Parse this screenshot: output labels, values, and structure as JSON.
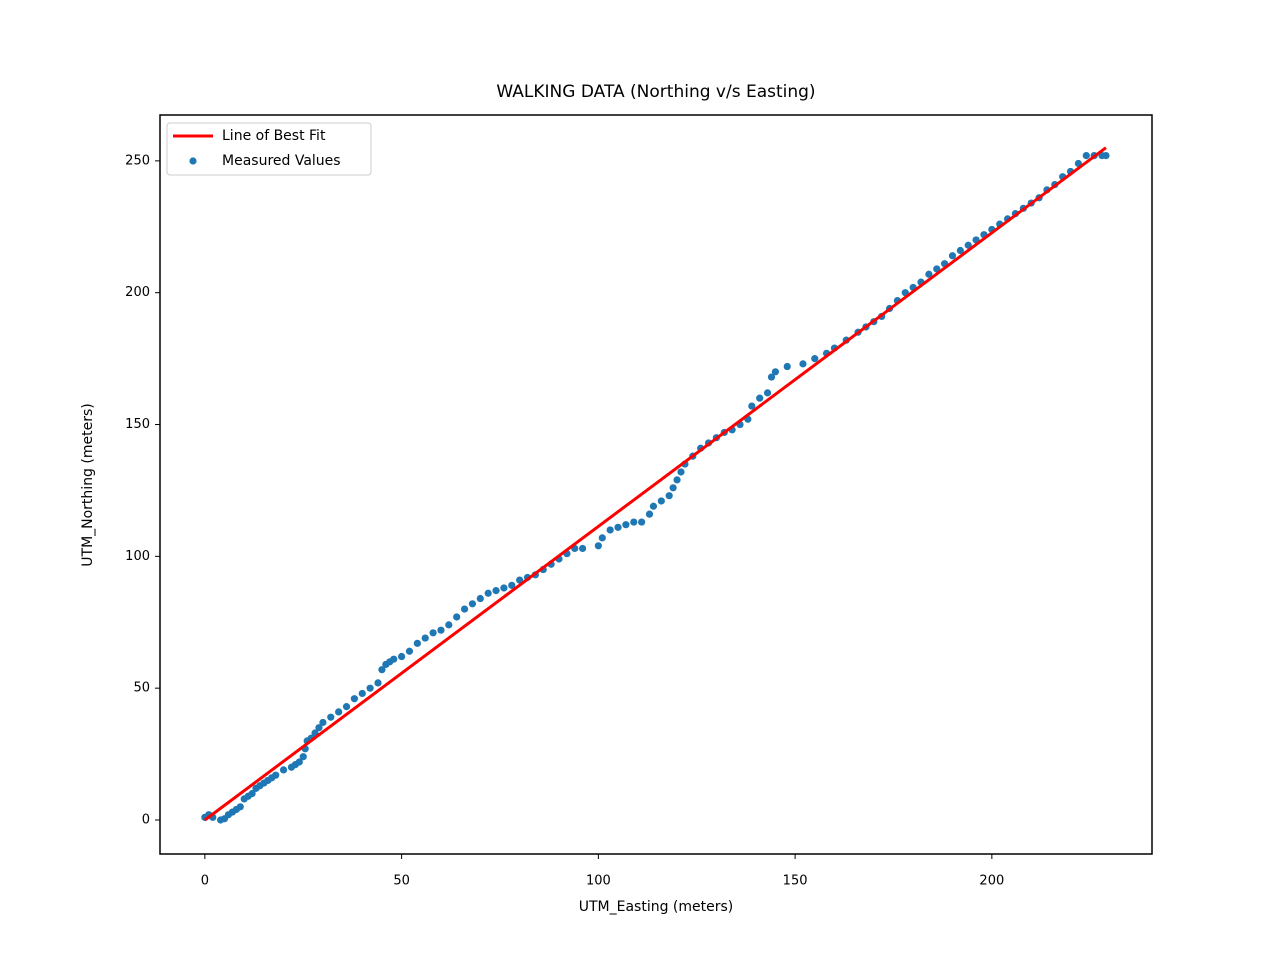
{
  "chart_data": {
    "type": "scatter",
    "title": "WALKING DATA (Northing v/s Easting)",
    "xlabel": "UTM_Easting (meters)",
    "ylabel": "UTM_Northing (meters)",
    "xlim": [
      -11.4,
      240.7
    ],
    "ylim": [
      -12.9,
      267.4
    ],
    "xticks": [
      0,
      50,
      100,
      150,
      200
    ],
    "yticks": [
      0,
      50,
      100,
      150,
      200,
      250
    ],
    "grid": false,
    "legend": "upper left",
    "series": [
      {
        "name": "Line of Best Fit",
        "type": "line",
        "color": "#ff0000",
        "x": [
          0,
          229
        ],
        "values": [
          0,
          255
        ]
      },
      {
        "name": "Measured Values",
        "type": "scatter",
        "color": "#1f77b4",
        "x": [
          0,
          1,
          2,
          4,
          5,
          6,
          7,
          8,
          9,
          10,
          11,
          12,
          13,
          14,
          15,
          16,
          17,
          18,
          20,
          22,
          23,
          24,
          25,
          25.5,
          26,
          27,
          28,
          29,
          30,
          32,
          34,
          36,
          38,
          40,
          42,
          44,
          45,
          46,
          47,
          48,
          50,
          52,
          54,
          56,
          58,
          60,
          62,
          64,
          66,
          68,
          70,
          72,
          74,
          76,
          78,
          80,
          82,
          84,
          86,
          88,
          90,
          92,
          94,
          96,
          100,
          101,
          103,
          105,
          107,
          109,
          111,
          113,
          114,
          116,
          118,
          119,
          120,
          121,
          122,
          124,
          126,
          128,
          130,
          132,
          134,
          136,
          138,
          139,
          141,
          143,
          144,
          145,
          148,
          152,
          155,
          158,
          160,
          163,
          166,
          168,
          170,
          172,
          174,
          176,
          178,
          180,
          182,
          184,
          186,
          188,
          190,
          192,
          194,
          196,
          198,
          200,
          202,
          204,
          206,
          208,
          210,
          212,
          214,
          216,
          218,
          220,
          222,
          224,
          226,
          228,
          229
        ],
        "values": [
          1,
          2,
          1,
          0,
          0.5,
          2,
          3,
          4,
          5,
          8,
          9,
          10,
          12,
          13,
          14,
          15,
          16,
          17,
          19,
          20,
          21,
          22,
          24,
          27,
          30,
          31,
          33,
          35,
          37,
          39,
          41,
          43,
          46,
          48,
          50,
          52,
          57,
          59,
          60,
          61,
          62,
          64,
          67,
          69,
          71,
          72,
          74,
          77,
          80,
          82,
          84,
          86,
          87,
          88,
          89,
          91,
          92,
          93,
          95,
          97,
          99,
          101,
          103,
          103,
          104,
          107,
          110,
          111,
          112,
          113,
          113,
          116,
          119,
          121,
          123,
          126,
          129,
          132,
          135,
          138,
          141,
          143,
          145,
          147,
          148,
          150,
          152,
          157,
          160,
          162,
          168,
          170,
          172,
          173,
          175,
          177,
          179,
          182,
          185,
          187,
          189,
          191,
          194,
          197,
          200,
          202,
          204,
          207,
          209,
          211,
          214,
          216,
          218,
          220,
          222,
          224,
          226,
          228,
          230,
          232,
          234,
          236,
          239,
          241,
          244,
          246,
          249,
          252,
          252,
          252,
          252
        ]
      }
    ]
  }
}
